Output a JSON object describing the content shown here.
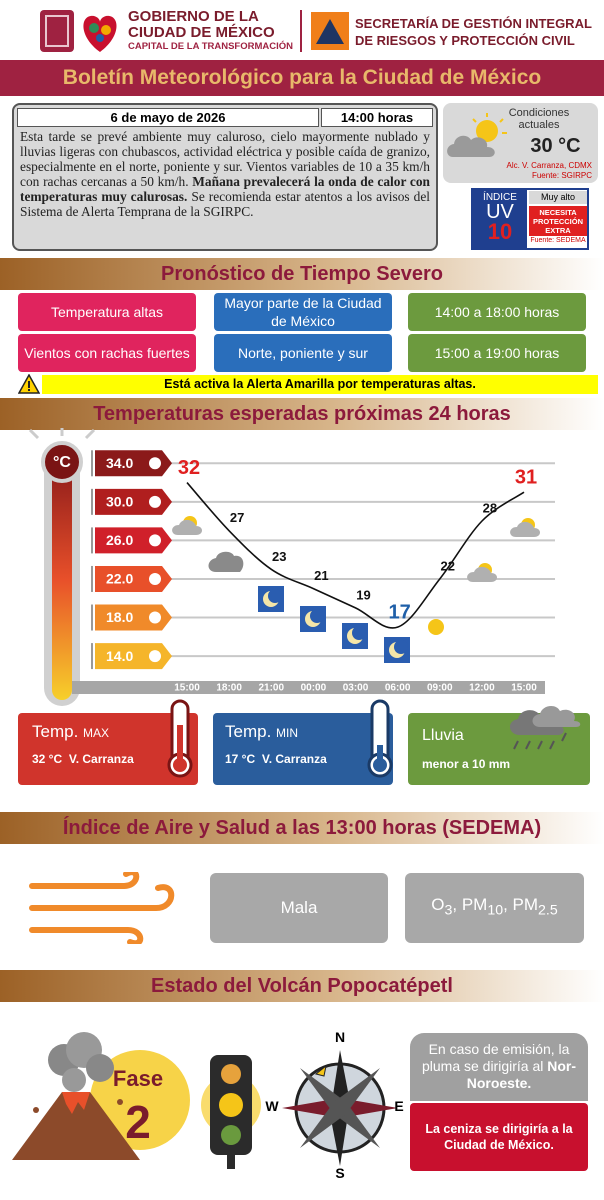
{
  "header": {
    "gov_line1": "GOBIERNO DE LA",
    "gov_line2": "CIUDAD DE MÉXICO",
    "gov_line3": "CAPITAL DE LA TRANSFORMACIÓN",
    "sec_line1": "SECRETARÍA DE GESTIÓN INTEGRAL",
    "sec_line2": "DE RIESGOS Y PROTECCIÓN CIVIL"
  },
  "title": "Boletín Meteorológico para la Ciudad de México",
  "summary": {
    "date": "6 de mayo de 2026",
    "time": "14:00 horas",
    "text_before": "Esta tarde se prevé ambiente muy caluroso, cielo mayormente nublado y lluvias ligeras con chubascos, actividad eléctrica y posible caída de granizo, especialmente en el norte, poniente y sur. Vientos variables de 10 a 35 km/h con rachas cercanas a 50 km/h. ",
    "text_bold": "Mañana prevalecerá la onda de calor con temperaturas muy calurosas.",
    "text_after": " Se recomienda estar atentos a los avisos del Sistema de Alerta Temprana de la SGIRPC."
  },
  "conditions": {
    "label": "Condiciones actuales",
    "temp": "30 °C",
    "location": "Alc. V. Carranza, CDMX",
    "source": "Fuente: SGIRPC"
  },
  "uv": {
    "label_top": "ÍNDICE",
    "label_uv": "UV",
    "value": 10,
    "level": "Muy alto",
    "warning": "NECESITA PROTECCIÓN EXTRA",
    "source": "Fuente: SEDEMA"
  },
  "severe": {
    "title": "Pronóstico de Tiempo Severo",
    "rows": [
      [
        "Temperatura altas",
        "Mayor parte de la Ciudad de México",
        "14:00 a 18:00 horas"
      ],
      [
        "Vientos con rachas fuertes",
        "Norte, poniente y sur",
        "15:00 a 19:00 horas"
      ]
    ],
    "alert": "Está activa la Alerta Amarilla por temperaturas altas."
  },
  "chart_data": {
    "type": "line",
    "title": "Temperaturas esperadas próximas 24 horas",
    "unit_label": "°C",
    "categories": [
      "15:00",
      "18:00",
      "21:00",
      "00:00",
      "03:00",
      "06:00",
      "09:00",
      "12:00",
      "15:00"
    ],
    "values": [
      32,
      27,
      23,
      21,
      19,
      17,
      22,
      28,
      31
    ],
    "color": "#111111",
    "ylim": [
      11,
      36
    ],
    "yticks": [
      {
        "value": 34,
        "label": "34.0"
      },
      {
        "value": 30,
        "label": "30.0"
      },
      {
        "value": 26,
        "label": "26.0"
      },
      {
        "value": 22,
        "label": "22.0"
      },
      {
        "value": 18,
        "label": "18.0"
      },
      {
        "value": 14,
        "label": "14.0"
      }
    ],
    "grid": true
  },
  "cards": {
    "max": {
      "label": "Temp.",
      "tag": "MAX",
      "text": "32 °C  V. Carranza"
    },
    "min": {
      "label": "Temp.",
      "tag": "MIN",
      "text": "17 °C  V. Carranza"
    },
    "rain": {
      "label": "Lluvia",
      "text": "menor a 10 mm"
    }
  },
  "air": {
    "title": "Índice de Aire y Salud a las 13:00 horas (SEDEMA)",
    "quality": "Mala",
    "separator": ", ",
    "pollutants": [
      {
        "base": "O",
        "sub": "3"
      },
      {
        "base": "PM",
        "sub": "10"
      },
      {
        "base": "PM",
        "sub": "2.5"
      }
    ]
  },
  "volcano": {
    "title": "Estado del Volcán Popocatépetl",
    "phase_label": "Fase",
    "phase": 2,
    "compass": {
      "n": "N",
      "s": "S",
      "e": "E",
      "w": "W"
    },
    "plume_before": "En caso de emisión, la pluma se dirigiría al ",
    "plume_dir": "Nor-Noroeste",
    "plume_end": ".",
    "ash": "La ceniza se dirigiría a la Ciudad de México."
  }
}
